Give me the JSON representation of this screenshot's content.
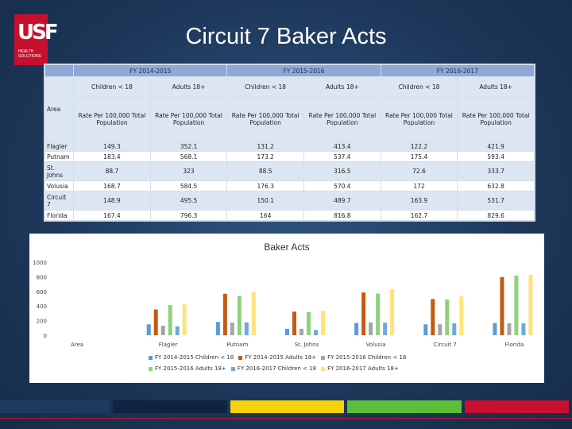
{
  "title": "Circuit 7 Baker Acts",
  "logo": {
    "mark": "USF",
    "sub_line1": "HEALTH",
    "sub_line2": "SOLUTIONS"
  },
  "table": {
    "year_headers": [
      "FY 2014-2015",
      "FY 2015-2016",
      "FY 2016-2017"
    ],
    "area_label": "Area",
    "group_headers": [
      "Children < 18",
      "Adults 18+",
      "Children < 18",
      "Adults 18+",
      "Children < 18",
      "Adults 18+"
    ],
    "rate_headers": [
      "Rate Per 100,000 Total Population",
      "Rate Per 100,000 Total Population",
      "Rate Per 100,000 Total Population",
      "Rate Per 100,000 Total Population",
      "Rate Per 100,000 Total Population",
      "Rate Per 100,000 Total Population"
    ],
    "rows": [
      {
        "area": "Flagler",
        "v": [
          "149.3",
          "352.1",
          "131.2",
          "413.4",
          "122.2",
          "421.9"
        ]
      },
      {
        "area": "Putnam",
        "v": [
          "183.4",
          "568.1",
          "173.2",
          "537.4",
          "175.4",
          "593.4"
        ]
      },
      {
        "area": "St. Johns",
        "v": [
          "88.7",
          "323",
          "88.5",
          "316.5",
          "72.6",
          "333.7"
        ]
      },
      {
        "area": "Volusia",
        "v": [
          "168.7",
          "584.5",
          "176.3",
          "570.4",
          "172",
          "632.8"
        ]
      },
      {
        "area": "Circuit 7",
        "v": [
          "148.9",
          "495.5",
          "150.1",
          "489.7",
          "163.9",
          "531.7"
        ]
      },
      {
        "area": "Florida",
        "v": [
          "167.4",
          "796.3",
          "164",
          "816.8",
          "162.7",
          "829.6"
        ]
      }
    ]
  },
  "chart_data": {
    "type": "bar",
    "title": "Baker Acts",
    "categories": [
      "Area",
      "Flagler",
      "Putnam",
      "St. Johns",
      "Volusia",
      "Circuit 7",
      "Florida"
    ],
    "ylim": [
      0,
      1000
    ],
    "yticks": [
      "0",
      "200",
      "400",
      "600",
      "800",
      "1000"
    ],
    "series": [
      {
        "name": "FY 2014-2015 Children < 18",
        "color": "#5b9bd5",
        "values": [
          0,
          149.3,
          183.4,
          88.7,
          168.7,
          148.9,
          167.4
        ]
      },
      {
        "name": "FY 2014-2015 Adults 18+",
        "color": "#c55a11",
        "values": [
          0,
          352.1,
          568.1,
          323,
          584.5,
          495.5,
          796.3
        ]
      },
      {
        "name": "FY 2015-2016 Children < 18",
        "color": "#a5a5a5",
        "values": [
          0,
          131.2,
          173.2,
          88.5,
          176.3,
          150.1,
          164
        ]
      },
      {
        "name": "FY 2015-2016 Adults 18+",
        "color": "#8fd17d",
        "values": [
          0,
          413.4,
          537.4,
          316.5,
          570.4,
          489.7,
          816.8
        ]
      },
      {
        "name": "FY 2016-2017 Children < 18",
        "color": "#6fa8dc",
        "values": [
          0,
          122.2,
          175.4,
          72.6,
          172,
          163.9,
          162.7
        ]
      },
      {
        "name": "FY 2016-2017 Adults 18+",
        "color": "#ffe27a",
        "values": [
          0,
          421.9,
          593.4,
          333.7,
          632.8,
          531.7,
          829.6
        ]
      }
    ],
    "legend_position": "bottom"
  },
  "strip_colors": [
    "#1f3a5f",
    "#0f2440",
    "#f5d20a",
    "#5bbf3a",
    "#c8102e"
  ]
}
